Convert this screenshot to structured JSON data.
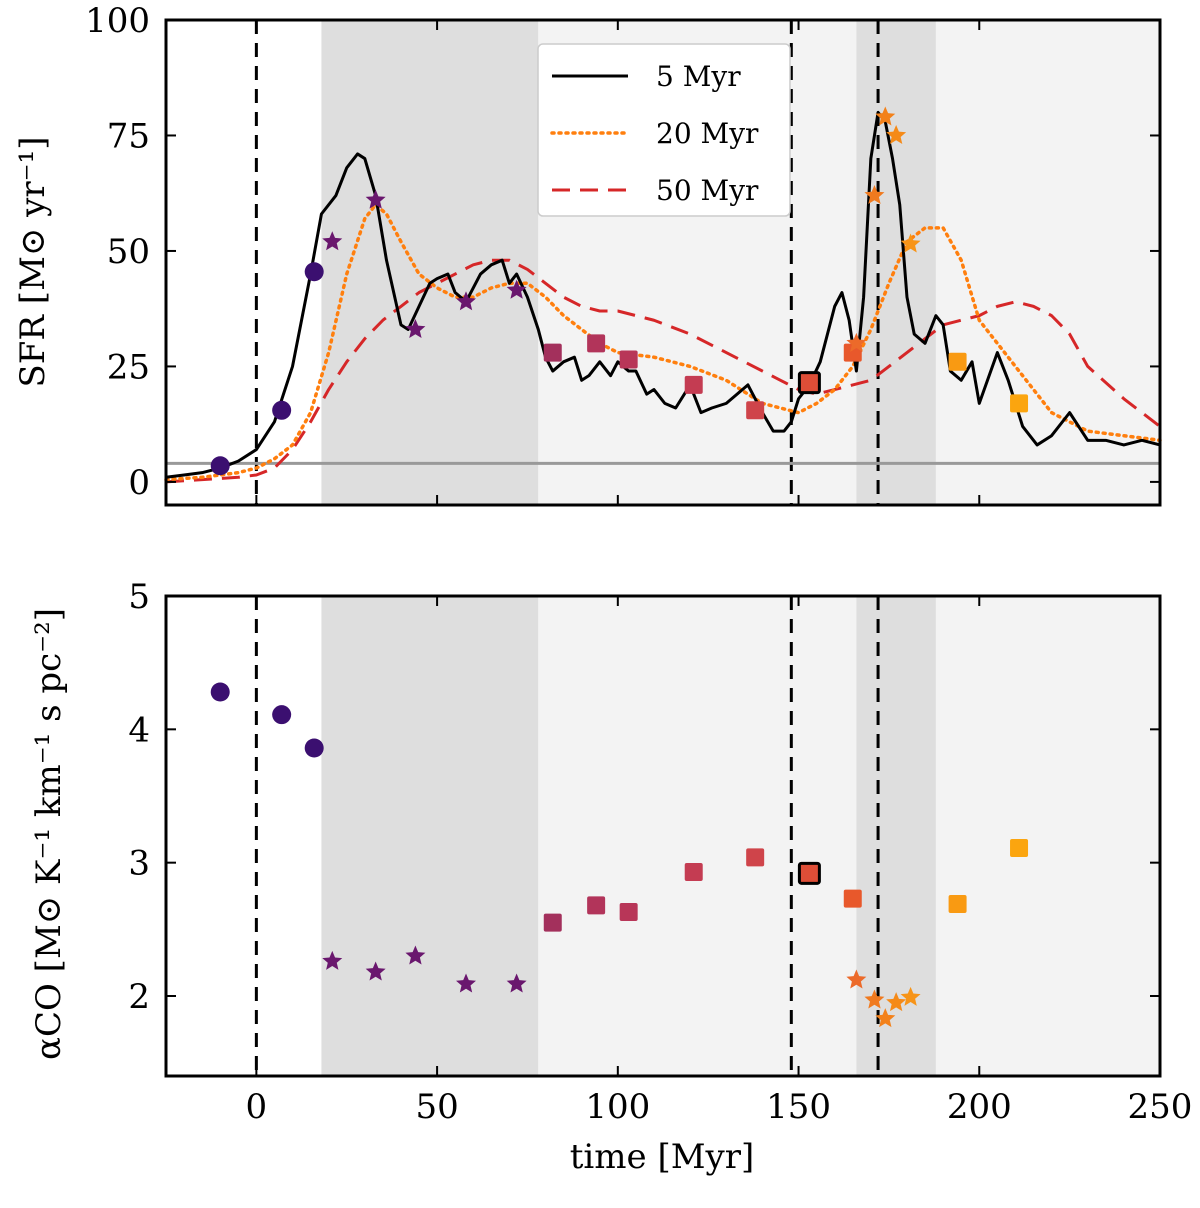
{
  "chart_data": [
    {
      "type": "line",
      "panel": "top",
      "ylabel": "SFR [M⊙ yr⁻¹]",
      "xlim": [
        -25,
        250
      ],
      "ylim": [
        -5,
        100
      ],
      "yticks": [
        0,
        25,
        50,
        75,
        100
      ],
      "xticks": [
        0,
        50,
        100,
        150,
        200,
        250
      ],
      "legend": {
        "placement": "top-center",
        "entries": [
          "5 Myr",
          "20 Myr",
          "50 Myr"
        ]
      },
      "shaded_regions": [
        {
          "x0": -25,
          "x1": 18,
          "shade": "#ffffff"
        },
        {
          "x0": 18,
          "x1": 78,
          "shade": "#dedede"
        },
        {
          "x0": 78,
          "x1": 166,
          "shade": "#f3f3f3"
        },
        {
          "x0": 166,
          "x1": 188,
          "shade": "#dedede"
        },
        {
          "x0": 188,
          "x1": 250,
          "shade": "#f3f3f3"
        }
      ],
      "vlines": [
        0,
        148,
        172
      ],
      "hline": 4,
      "series": [
        {
          "name": "5 Myr",
          "color": "#000000",
          "style": "solid",
          "x": [
            -25,
            -20,
            -15,
            -10,
            -5,
            0,
            5,
            10,
            15,
            18,
            22,
            25,
            28,
            30,
            33,
            36,
            40,
            42,
            45,
            48,
            50,
            53,
            55,
            58,
            60,
            62,
            65,
            68,
            70,
            72,
            75,
            78,
            80,
            82,
            85,
            88,
            90,
            92,
            95,
            98,
            100,
            103,
            105,
            108,
            110,
            113,
            116,
            120,
            123,
            126,
            130,
            133,
            136,
            140,
            143,
            146,
            148,
            150,
            153,
            156,
            158,
            160,
            162,
            164,
            166,
            168,
            170,
            172,
            174,
            176,
            178,
            180,
            182,
            185,
            188,
            190,
            192,
            195,
            198,
            200,
            205,
            208,
            212,
            216,
            220,
            225,
            230,
            235,
            240,
            245,
            250
          ],
          "values": [
            1,
            1.5,
            2,
            3,
            4.5,
            7,
            13,
            25,
            45,
            58,
            62,
            68,
            71,
            70,
            62,
            48,
            34,
            33,
            38,
            43,
            44,
            45,
            41,
            39,
            42,
            45,
            47,
            48,
            43,
            45,
            40,
            33,
            27,
            24,
            26,
            27,
            22,
            23,
            26,
            23,
            26,
            24,
            24,
            19,
            20,
            17,
            16,
            21,
            15,
            16,
            17,
            19,
            21,
            15,
            11,
            11,
            13,
            18,
            21,
            26,
            32,
            38,
            41,
            35,
            24,
            40,
            70,
            80,
            78,
            70,
            60,
            40,
            32,
            30,
            36,
            34,
            24,
            22,
            26,
            17,
            28,
            22,
            12,
            8,
            10,
            15,
            9,
            9,
            8,
            9,
            8
          ]
        },
        {
          "name": "20 Myr",
          "color": "#ff7f0e",
          "style": "dotted",
          "x": [
            -25,
            -15,
            -5,
            0,
            5,
            10,
            15,
            20,
            25,
            30,
            33,
            36,
            40,
            45,
            50,
            55,
            60,
            65,
            70,
            75,
            80,
            85,
            90,
            95,
            100,
            110,
            120,
            130,
            140,
            150,
            155,
            160,
            165,
            170,
            175,
            180,
            185,
            190,
            195,
            200,
            210,
            220,
            230,
            240,
            250
          ],
          "values": [
            0.5,
            1,
            2,
            3,
            5,
            8,
            15,
            28,
            45,
            57,
            60,
            58,
            52,
            45,
            42,
            40,
            40,
            42,
            43,
            43,
            40,
            36,
            33,
            30,
            28,
            27,
            25,
            22,
            17,
            15,
            17,
            20,
            25,
            33,
            43,
            52,
            55,
            55,
            48,
            35,
            25,
            15,
            11,
            10,
            9
          ]
        },
        {
          "name": "50 Myr",
          "color": "#d62728",
          "style": "dashed",
          "x": [
            -25,
            -15,
            -5,
            0,
            5,
            10,
            15,
            20,
            25,
            30,
            35,
            40,
            45,
            50,
            55,
            60,
            65,
            70,
            75,
            80,
            85,
            90,
            95,
            100,
            110,
            120,
            130,
            140,
            145,
            150,
            155,
            160,
            165,
            170,
            175,
            180,
            185,
            190,
            195,
            200,
            205,
            210,
            215,
            220,
            225,
            230,
            240,
            250
          ],
          "values": [
            0,
            0.5,
            1,
            1.5,
            3,
            7,
            13,
            20,
            26,
            31,
            35,
            38,
            41,
            43,
            45,
            47,
            48,
            48,
            46,
            43,
            40,
            38,
            37,
            37,
            35,
            32,
            28,
            24,
            22,
            20,
            19,
            20,
            21,
            22,
            25,
            28,
            31,
            34,
            35,
            36,
            38,
            39,
            38,
            36,
            32,
            25,
            18,
            12
          ]
        }
      ],
      "markers": [
        {
          "shape": "circle",
          "color": "#3b0f70",
          "x": -10,
          "y": 3.5
        },
        {
          "shape": "circle",
          "color": "#3b0f70",
          "x": 7,
          "y": 15.5
        },
        {
          "shape": "circle",
          "color": "#3b0f70",
          "x": 16,
          "y": 45.5
        },
        {
          "shape": "star",
          "color": "#6a176e",
          "x": 21,
          "y": 52
        },
        {
          "shape": "star",
          "color": "#6a176e",
          "x": 33,
          "y": 61
        },
        {
          "shape": "star",
          "color": "#6a176e",
          "x": 44,
          "y": 33
        },
        {
          "shape": "star",
          "color": "#6a176e",
          "x": 58,
          "y": 39
        },
        {
          "shape": "star",
          "color": "#6a176e",
          "x": 72,
          "y": 41.5
        },
        {
          "shape": "square",
          "color": "#a3305c",
          "x": 82,
          "y": 28
        },
        {
          "shape": "square",
          "color": "#b2345a",
          "x": 94,
          "y": 30
        },
        {
          "shape": "square",
          "color": "#b83658",
          "x": 103,
          "y": 26.5
        },
        {
          "shape": "square",
          "color": "#c43c52",
          "x": 121,
          "y": 21
        },
        {
          "shape": "square",
          "color": "#cf444a",
          "x": 138,
          "y": 15.5
        },
        {
          "shape": "square",
          "color": "#de4e37",
          "x": 153,
          "y": 21.5,
          "highlight": true
        },
        {
          "shape": "square",
          "color": "#e8582b",
          "x": 165,
          "y": 28
        },
        {
          "shape": "star",
          "color": "#ec6a2a",
          "x": 166,
          "y": 30
        },
        {
          "shape": "star",
          "color": "#f07a1f",
          "x": 171,
          "y": 62
        },
        {
          "shape": "star",
          "color": "#f3811a",
          "x": 174,
          "y": 79
        },
        {
          "shape": "star",
          "color": "#f58a18",
          "x": 177,
          "y": 75
        },
        {
          "shape": "star",
          "color": "#f79418",
          "x": 181,
          "y": 51.5
        },
        {
          "shape": "square",
          "color": "#f99a12",
          "x": 194,
          "y": 26
        },
        {
          "shape": "square",
          "color": "#fba50f",
          "x": 211,
          "y": 17
        }
      ]
    },
    {
      "type": "scatter",
      "panel": "bottom",
      "xlabel": "time [Myr]",
      "ylabel": "αCO [M⊙ K⁻¹ km⁻¹ s pc⁻²]",
      "xlim": [
        -25,
        250
      ],
      "ylim": [
        1.4,
        5
      ],
      "yticks": [
        2,
        3,
        4,
        5
      ],
      "xticks": [
        0,
        50,
        100,
        150,
        200,
        250
      ],
      "points": [
        {
          "shape": "circle",
          "color": "#3b0f70",
          "x": -10,
          "y": 4.28
        },
        {
          "shape": "circle",
          "color": "#3b0f70",
          "x": 7,
          "y": 4.11
        },
        {
          "shape": "circle",
          "color": "#3b0f70",
          "x": 16,
          "y": 3.86
        },
        {
          "shape": "star",
          "color": "#6a176e",
          "x": 21,
          "y": 2.26
        },
        {
          "shape": "star",
          "color": "#6a176e",
          "x": 33,
          "y": 2.18
        },
        {
          "shape": "star",
          "color": "#6a176e",
          "x": 44,
          "y": 2.3
        },
        {
          "shape": "star",
          "color": "#6a176e",
          "x": 58,
          "y": 2.09
        },
        {
          "shape": "star",
          "color": "#6a176e",
          "x": 72,
          "y": 2.09
        },
        {
          "shape": "square",
          "color": "#a3305c",
          "x": 82,
          "y": 2.55
        },
        {
          "shape": "square",
          "color": "#b2345a",
          "x": 94,
          "y": 2.68
        },
        {
          "shape": "square",
          "color": "#b83658",
          "x": 103,
          "y": 2.63
        },
        {
          "shape": "square",
          "color": "#c43c52",
          "x": 121,
          "y": 2.93
        },
        {
          "shape": "square",
          "color": "#cf444a",
          "x": 138,
          "y": 3.04
        },
        {
          "shape": "square",
          "color": "#de4e37",
          "x": 153,
          "y": 2.92,
          "highlight": true
        },
        {
          "shape": "square",
          "color": "#e8582b",
          "x": 165,
          "y": 2.73
        },
        {
          "shape": "star",
          "color": "#ec6a2a",
          "x": 166,
          "y": 2.12
        },
        {
          "shape": "star",
          "color": "#f07a1f",
          "x": 171,
          "y": 1.97
        },
        {
          "shape": "star",
          "color": "#f3811a",
          "x": 174,
          "y": 1.83
        },
        {
          "shape": "star",
          "color": "#f58a18",
          "x": 177,
          "y": 1.95
        },
        {
          "shape": "star",
          "color": "#f79418",
          "x": 181,
          "y": 1.99
        },
        {
          "shape": "square",
          "color": "#f99a12",
          "x": 194,
          "y": 2.69
        },
        {
          "shape": "square",
          "color": "#fba50f",
          "x": 211,
          "y": 3.11
        }
      ]
    }
  ]
}
